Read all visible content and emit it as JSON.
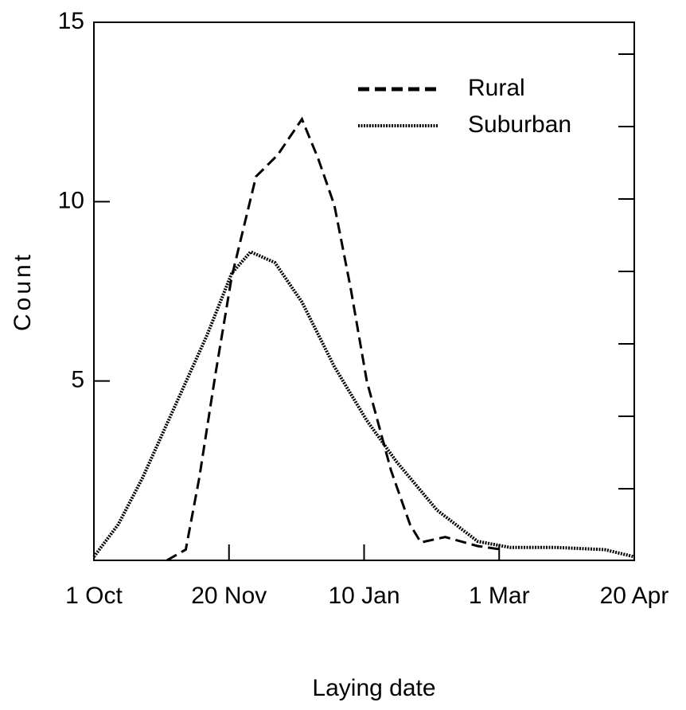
{
  "chart_data": {
    "type": "line",
    "x_label": "Laying date",
    "y_label": "Count",
    "xlim": [
      0,
      200
    ],
    "ylim": [
      0,
      15
    ],
    "xticks": [
      {
        "value": 0,
        "label": "1 Oct"
      },
      {
        "value": 50,
        "label": "20 Nov"
      },
      {
        "value": 100,
        "label": "10 Jan"
      },
      {
        "value": 150,
        "label": "1 Mar"
      },
      {
        "value": 200,
        "label": "20 Apr"
      }
    ],
    "yticks": [
      5,
      10,
      15
    ],
    "legend": "upper right",
    "series": [
      {
        "name": "Rural",
        "color": "#000000",
        "style": "dashed",
        "x": [
          27,
          34,
          39,
          45,
          51,
          60,
          68,
          77,
          83,
          89,
          95,
          101,
          110,
          117,
          121,
          130,
          142,
          151
        ],
        "values": [
          0,
          0.3,
          2.3,
          5.2,
          7.9,
          10.7,
          11.3,
          12.3,
          11.2,
          9.9,
          7.6,
          5.0,
          2.5,
          1.0,
          0.5,
          0.65,
          0.4,
          0.3
        ]
      },
      {
        "name": "Suburban",
        "color": "#000000",
        "style": "dotted",
        "x": [
          0,
          9,
          18,
          30,
          42,
          51,
          58,
          67,
          77,
          89,
          101,
          112,
          127,
          142,
          154,
          171,
          189,
          200
        ],
        "values": [
          0.1,
          1.0,
          2.3,
          4.3,
          6.3,
          8.0,
          8.6,
          8.3,
          7.2,
          5.4,
          3.9,
          2.75,
          1.4,
          0.53,
          0.36,
          0.36,
          0.3,
          0.1
        ]
      }
    ]
  }
}
